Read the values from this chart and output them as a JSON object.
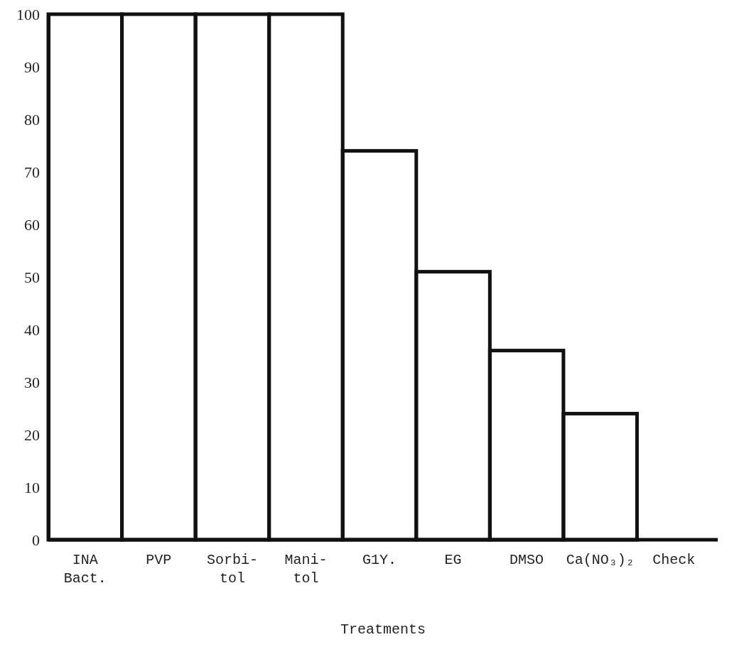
{
  "chart_data": {
    "type": "bar",
    "xlabel": "Treatments",
    "categories": [
      "INA\nBact.",
      "PVP",
      "Sorbi-\ntol",
      "Mani-\ntol",
      "G1Y.",
      "EG",
      "DMSO",
      "Ca(NO₃)₂",
      "Check"
    ],
    "values": [
      100,
      100,
      100,
      100,
      74,
      51,
      36,
      24,
      0
    ],
    "color": "#111111",
    "ylim": [
      0,
      100
    ],
    "yticks": [
      0,
      10,
      20,
      30,
      40,
      50,
      60,
      70,
      80,
      90,
      100
    ],
    "grid": false
  }
}
